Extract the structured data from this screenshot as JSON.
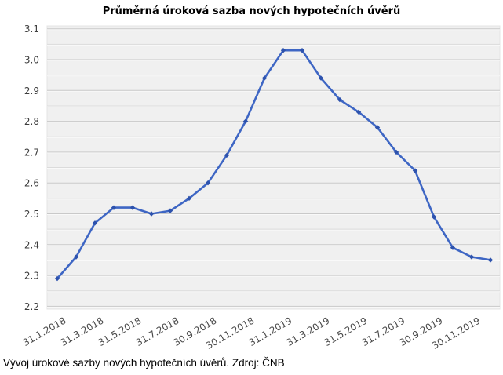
{
  "page": {
    "title": "Průměrná úroková sazba nových hypotečních úvěrů",
    "caption": "Vývoj úrokové sazby nových hypotečních úvěrů. Zdroj: ČNB"
  },
  "chart_data": {
    "type": "line",
    "title": "Průměrná úroková sazba nových hypotečních úvěrů",
    "caption": "Vývoj úrokové sazby nových hypotečních úvěrů. Zdroj: ČNB",
    "x": [
      "31.1.2018",
      "28.2.2018",
      "31.3.2018",
      "30.4.2018",
      "31.5.2018",
      "30.6.2018",
      "31.7.2018",
      "31.8.2018",
      "30.9.2018",
      "31.10.2018",
      "30.11.2018",
      "31.12.2018",
      "31.1.2019",
      "28.2.2019",
      "31.3.2019",
      "30.4.2019",
      "31.5.2019",
      "30.6.2019",
      "31.7.2019",
      "31.8.2019",
      "30.9.2019",
      "31.10.2019",
      "30.11.2019",
      "31.12.2019"
    ],
    "values": [
      2.29,
      2.36,
      2.47,
      2.52,
      2.52,
      2.5,
      2.51,
      2.55,
      2.6,
      2.69,
      2.8,
      2.94,
      3.03,
      3.03,
      2.94,
      2.87,
      2.83,
      2.78,
      2.7,
      2.64,
      2.49,
      2.39,
      2.36,
      2.35
    ],
    "x_tick_labels": [
      "31.1.2018",
      "31.3.2018",
      "31.5.2018",
      "31.7.2018",
      "30.9.2018",
      "30.11.2018",
      "31.1.2019",
      "31.3.2019",
      "31.5.2019",
      "31.7.2019",
      "30.9.2019",
      "30.11.2019"
    ],
    "x_tick_every": 2,
    "ylim": [
      2.2,
      3.1
    ],
    "y_major_step": 0.1,
    "y_minor_step": 0.05,
    "xlabel": "",
    "ylabel": "",
    "grid": true,
    "legend": false,
    "line_color": "#3E66C4",
    "marker_color": "#2D52AD",
    "plot_bg": "#F0F0F0",
    "grid_major_color": "#C9C9C9",
    "grid_minor_color": "#DBDBDB"
  }
}
